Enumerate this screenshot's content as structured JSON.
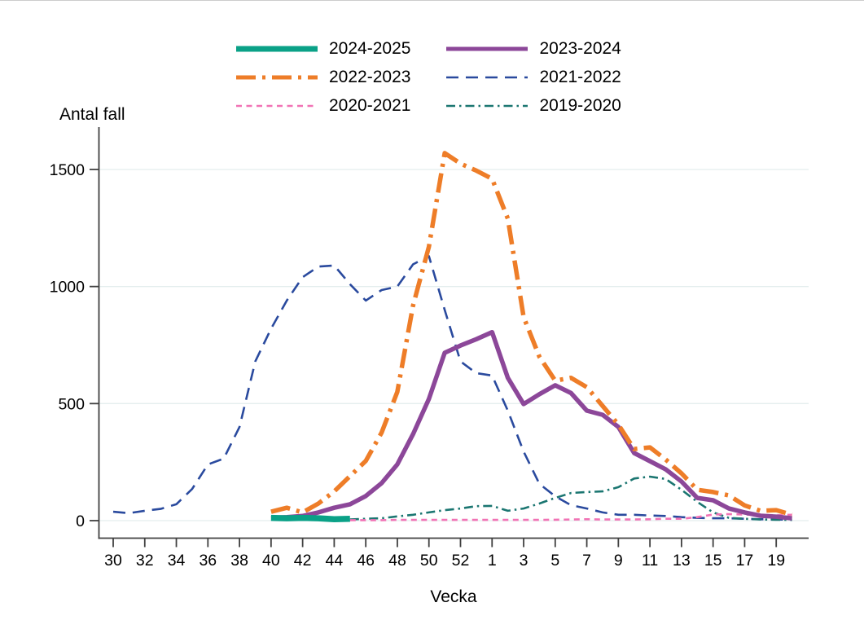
{
  "chart_data": {
    "type": "line",
    "ylabel": "Antal fall",
    "xlabel": "Vecka",
    "ylim": [
      0,
      1600
    ],
    "yticks": [
      0,
      500,
      1000,
      1500
    ],
    "grid": "horizontal",
    "legend_position": "top-center",
    "axis_color": "#404040",
    "gridline_color": "#e4eeee",
    "x_categories": [
      "30",
      "31",
      "32",
      "33",
      "34",
      "35",
      "36",
      "37",
      "38",
      "39",
      "40",
      "41",
      "42",
      "43",
      "44",
      "45",
      "46",
      "47",
      "48",
      "49",
      "50",
      "51",
      "52",
      "53",
      "1",
      "2",
      "3",
      "4",
      "5",
      "6",
      "7",
      "8",
      "9",
      "10",
      "11",
      "12",
      "13",
      "14",
      "15",
      "16",
      "17",
      "18",
      "19",
      "20"
    ],
    "x_tick_indices": [
      0,
      2,
      4,
      6,
      8,
      10,
      12,
      14,
      16,
      18,
      20,
      22,
      24,
      26,
      28,
      30,
      32,
      34,
      36,
      38,
      40,
      42
    ],
    "x_tick_labels": [
      "30",
      "32",
      "34",
      "36",
      "38",
      "40",
      "42",
      "44",
      "46",
      "48",
      "50",
      "52",
      "1",
      "3",
      "5",
      "7",
      "9",
      "11",
      "13",
      "15",
      "17",
      "19"
    ],
    "series": [
      {
        "name": "2024-2025",
        "color": "#0aa187",
        "style": "solid",
        "width": 7.5,
        "values": [
          null,
          null,
          null,
          null,
          null,
          null,
          null,
          null,
          null,
          null,
          12,
          10,
          12,
          10,
          6,
          8,
          null,
          null,
          null,
          null,
          null,
          null,
          null,
          null,
          null,
          null,
          null,
          null,
          null,
          null,
          null,
          null,
          null,
          null,
          null,
          null,
          null,
          null,
          null,
          null,
          null,
          null,
          null,
          null
        ]
      },
      {
        "name": "2023-2024",
        "color": "#8c4799",
        "style": "solid",
        "width": 5.5,
        "values": [
          null,
          null,
          null,
          null,
          null,
          null,
          null,
          null,
          null,
          null,
          12,
          15,
          20,
          35,
          55,
          70,
          105,
          160,
          240,
          370,
          520,
          717,
          748,
          775,
          805,
          610,
          498,
          540,
          578,
          545,
          470,
          452,
          400,
          289,
          254,
          219,
          167,
          97,
          87,
          52,
          35,
          21,
          17,
          10
        ]
      },
      {
        "name": "2022-2023",
        "color": "#ee7d28",
        "style": "dashdot",
        "width": 5.5,
        "values": [
          null,
          null,
          null,
          null,
          null,
          null,
          null,
          null,
          null,
          null,
          38,
          55,
          35,
          73,
          125,
          190,
          255,
          376,
          550,
          920,
          1170,
          1570,
          1525,
          1495,
          1460,
          1290,
          870,
          700,
          598,
          610,
          570,
          490,
          410,
          306,
          313,
          261,
          202,
          132,
          122,
          108,
          65,
          42,
          45,
          25
        ]
      },
      {
        "name": "2021-2022",
        "color": "#2a4a9e",
        "style": "dash",
        "width": 2.6,
        "values": [
          38,
          32,
          42,
          50,
          70,
          135,
          240,
          265,
          400,
          680,
          820,
          940,
          1040,
          1085,
          1090,
          1010,
          940,
          985,
          1000,
          1095,
          1130,
          900,
          680,
          630,
          620,
          470,
          295,
          157,
          104,
          66,
          52,
          35,
          25,
          25,
          22,
          20,
          15,
          12,
          10,
          10,
          8,
          6,
          5,
          4
        ]
      },
      {
        "name": "2020-2021",
        "color": "#f173b5",
        "style": "dot",
        "width": 2.6,
        "values": [
          null,
          null,
          null,
          null,
          null,
          null,
          null,
          null,
          null,
          null,
          null,
          null,
          null,
          null,
          null,
          2,
          2,
          2,
          3,
          3,
          3,
          3,
          3,
          3,
          3,
          3,
          3,
          3,
          4,
          5,
          6,
          5,
          5,
          5,
          6,
          8,
          8,
          15,
          26,
          28,
          26,
          24,
          23,
          25
        ]
      },
      {
        "name": "2019-2020",
        "color": "#1b7671",
        "style": "dashdot-fine",
        "width": 2.6,
        "values": [
          null,
          null,
          null,
          null,
          null,
          null,
          null,
          null,
          null,
          null,
          null,
          null,
          null,
          null,
          null,
          5,
          8,
          10,
          18,
          25,
          35,
          45,
          52,
          62,
          63,
          42,
          52,
          73,
          97,
          118,
          122,
          125,
          143,
          180,
          188,
          178,
          132,
          80,
          35,
          12,
          8,
          5,
          4,
          3
        ]
      }
    ]
  }
}
